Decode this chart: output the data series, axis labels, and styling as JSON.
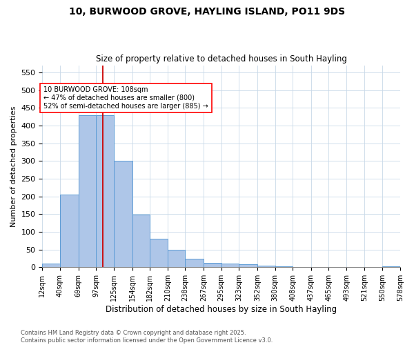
{
  "title_line1": "10, BURWOOD GROVE, HAYLING ISLAND, PO11 9DS",
  "title_line2": "Size of property relative to detached houses in South Hayling",
  "xlabel": "Distribution of detached houses by size in South Hayling",
  "ylabel": "Number of detached properties",
  "bar_color": "#aec6e8",
  "bar_edge_color": "#5b9bd5",
  "vline_color": "#cc0000",
  "vline_x": 108,
  "bin_edges": [
    12,
    40,
    69,
    97,
    125,
    154,
    182,
    210,
    238,
    267,
    295,
    323,
    352,
    380,
    408,
    437,
    465,
    493,
    521,
    550,
    578
  ],
  "bin_labels": [
    "12sqm",
    "40sqm",
    "69sqm",
    "97sqm",
    "125sqm",
    "154sqm",
    "182sqm",
    "210sqm",
    "238sqm",
    "267sqm",
    "295sqm",
    "323sqm",
    "352sqm",
    "380sqm",
    "408sqm",
    "437sqm",
    "465sqm",
    "493sqm",
    "521sqm",
    "550sqm",
    "578sqm"
  ],
  "bar_heights": [
    10,
    205,
    428,
    428,
    300,
    148,
    80,
    50,
    25,
    12,
    10,
    8,
    5,
    2,
    1,
    1,
    0,
    0,
    0,
    3
  ],
  "ylim": [
    0,
    570
  ],
  "yticks": [
    0,
    50,
    100,
    150,
    200,
    250,
    300,
    350,
    400,
    450,
    500,
    550
  ],
  "annotation_text": "10 BURWOOD GROVE: 108sqm\n← 47% of detached houses are smaller (800)\n52% of semi-detached houses are larger (885) →",
  "footnote_line1": "Contains HM Land Registry data © Crown copyright and database right 2025.",
  "footnote_line2": "Contains public sector information licensed under the Open Government Licence v3.0.",
  "background_color": "#ffffff",
  "grid_color": "#c8d8e8"
}
